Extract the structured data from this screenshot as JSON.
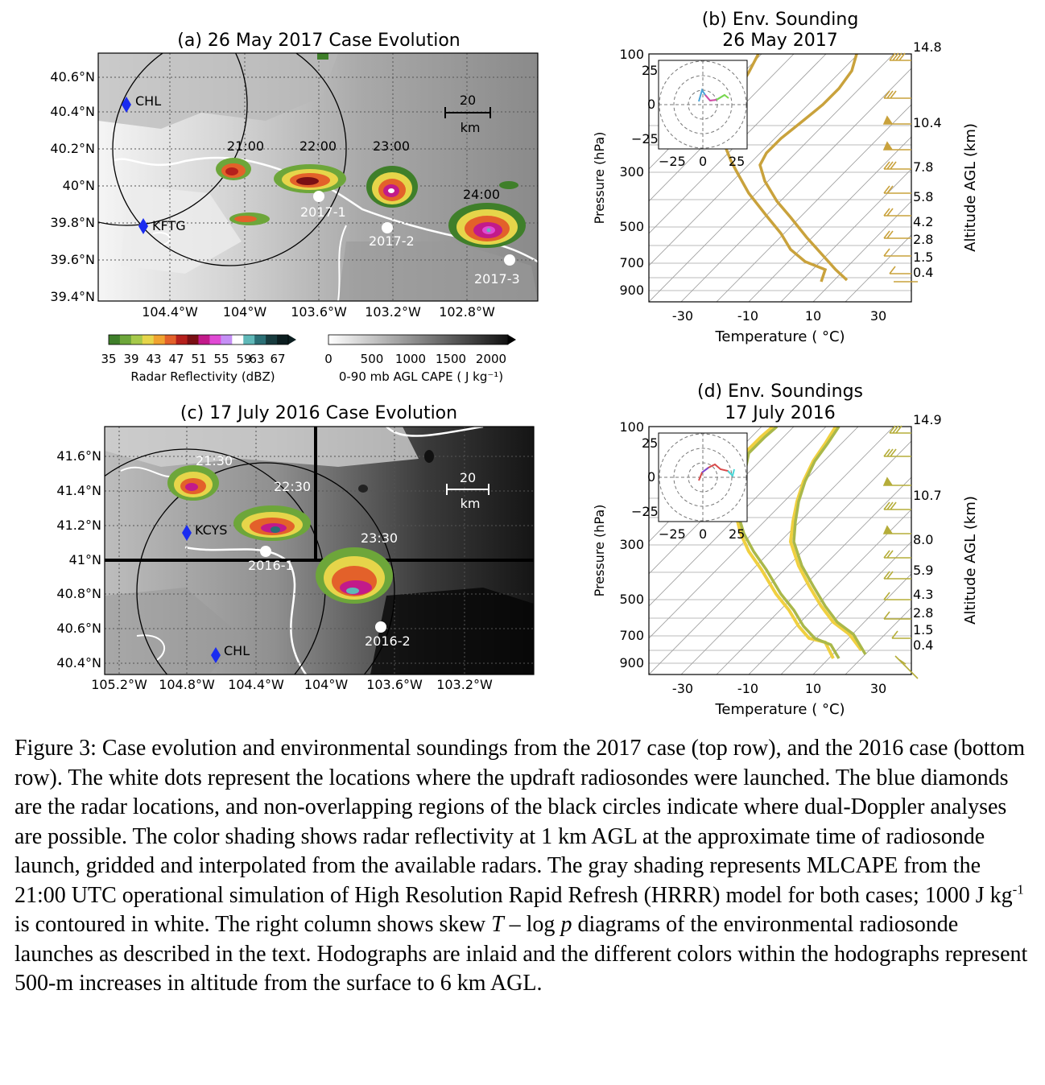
{
  "panels": {
    "a": {
      "title": "(a) 26 May 2017 Case Evolution",
      "lat_ticks": [
        "40.6°N",
        "40.4°N",
        "40.2°N",
        "40°N",
        "39.8°N",
        "39.6°N",
        "39.4°N"
      ],
      "lon_ticks": [
        "104.4°W",
        "104°W",
        "103.6°W",
        "103.2°W",
        "102.8°W"
      ],
      "times": [
        "21:00",
        "22:00",
        "23:00",
        "24:00"
      ],
      "radars": [
        "CHL",
        "KFTG"
      ],
      "launches": [
        "2017-1",
        "2017-2",
        "2017-3"
      ],
      "scale_value": "20",
      "scale_unit": "km"
    },
    "c": {
      "title": "(c) 17 July 2016 Case Evolution",
      "lat_ticks": [
        "41.6°N",
        "41.4°N",
        "41.2°N",
        "41°N",
        "40.8°N",
        "40.6°N",
        "40.4°N"
      ],
      "lon_ticks": [
        "105.2°W",
        "104.8°W",
        "104.4°W",
        "104°W",
        "103.6°W",
        "103.2°W"
      ],
      "times": [
        "21:30",
        "22:30",
        "23:30"
      ],
      "radars": [
        "KCYS",
        "CHL"
      ],
      "launches": [
        "2016-1",
        "2016-2"
      ],
      "scale_value": "20",
      "scale_unit": "km"
    },
    "b": {
      "title1": "(b) Env. Sounding",
      "title2": "26 May 2017",
      "p_ticks": [
        "100",
        "300",
        "500",
        "700",
        "900"
      ],
      "t_ticks": [
        "-30",
        "-10",
        "10",
        "30"
      ],
      "xlabel": "Temperature ( °C)",
      "ylabel": "Pressure (hPa)",
      "alt_ticks": [
        "14.8",
        "10.4",
        "7.8",
        "5.8",
        "4.2",
        "2.8",
        "1.5",
        "0.4"
      ],
      "alt_label": "Altitude AGL (km)",
      "hodo_ticks_y": [
        "25",
        "0",
        "−25"
      ],
      "hodo_ticks_x": [
        "−25",
        "0",
        "25"
      ]
    },
    "d": {
      "title1": "(d) Env. Soundings",
      "title2": "17 July 2016",
      "p_ticks": [
        "100",
        "300",
        "500",
        "700",
        "900"
      ],
      "t_ticks": [
        "-30",
        "-10",
        "10",
        "30"
      ],
      "xlabel": "Temperature ( °C)",
      "ylabel": "Pressure (hPa)",
      "alt_ticks": [
        "14.9",
        "10.7",
        "8.0",
        "5.9",
        "4.3",
        "2.8",
        "1.5",
        "0.4"
      ],
      "alt_label": "Altitude AGL (km)",
      "hodo_ticks_y": [
        "25",
        "0",
        "−25"
      ],
      "hodo_ticks_x": [
        "−25",
        "0",
        "25"
      ]
    }
  },
  "colorbars": {
    "reflectivity": {
      "ticks": [
        "35",
        "39",
        "43",
        "47",
        "51",
        "55",
        "59",
        "63",
        "67"
      ],
      "label": "Radar Reflectivity (dBZ)",
      "colors": [
        "#3f7f2a",
        "#6da63a",
        "#a6c94a",
        "#e6d54a",
        "#f0a330",
        "#e3612a",
        "#b5201c",
        "#7a0f14",
        "#c21a8a",
        "#e04ad4",
        "#c58ff5",
        "#ffffff",
        "#5fb8b8",
        "#2a6f75",
        "#173b3e",
        "#0c1e20"
      ]
    },
    "cape": {
      "ticks": [
        "0",
        "500",
        "1000",
        "1500",
        "2000"
      ],
      "label": "0-90 mb AGL CAPE ( J kg⁻¹)"
    }
  },
  "caption": {
    "p1": "Figure 3: Case evolution and environmental soundings from the 2017 case (top row), and the 2016 case (bottom row). The white dots represent the locations where the updraft radiosondes were launched. The blue diamonds are the radar locations, and non-overlapping regions of the black circles indicate where dual-Doppler analyses are possible. The color shading shows radar reflectivity at 1 km AGL at the approximate time of radiosonde launch, gridded and interpolated from the available radars. The gray shading represents MLCAPE from the 21:00 UTC operational simulation of High Resolution Rapid Refresh (HRRR) model for both cases; 1000 J kg",
    "sup": "-1",
    "p2": " is contoured in white. The right column shows skew ",
    "T": "T",
    "p3": " – log ",
    "p": "p",
    "p4": " diagrams of the environmental radiosonde launches as described in the text. Hodographs are inlaid and the different colors within the hodographs represent 500-m increases in altitude from the surface to 6 km AGL."
  }
}
